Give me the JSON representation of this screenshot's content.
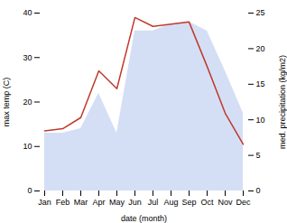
{
  "chart_data": {
    "type": "line",
    "categories": [
      "Jan",
      "Feb",
      "Mar",
      "Apr",
      "May",
      "Jun",
      "Jul",
      "Aug",
      "Sep",
      "Oct",
      "Nov",
      "Dec"
    ],
    "series": [
      {
        "type": "area",
        "color": "#b8c9ee",
        "values": [
          13.0,
          13.0,
          14.0,
          22.0,
          13.0,
          36.0,
          36.0,
          37.5,
          38.0,
          36.0,
          27.0,
          17.5
        ]
      },
      {
        "type": "line",
        "color": "#c0392b",
        "values": [
          13.5,
          14.0,
          16.5,
          27.0,
          23.0,
          39.0,
          37.0,
          37.5,
          38.0,
          28.0,
          17.5,
          10.5
        ]
      }
    ],
    "xlabel": "date (month)",
    "ylabel": "max temp (C)",
    "ylim": [
      0,
      40
    ],
    "yticks": [
      0,
      10,
      20,
      30,
      40
    ],
    "y2label": "med. precipitation (kg/m2)",
    "y2lim": [
      0,
      25
    ],
    "y2ticks": [
      0,
      5,
      10,
      15,
      20,
      25
    ],
    "grid": false
  }
}
